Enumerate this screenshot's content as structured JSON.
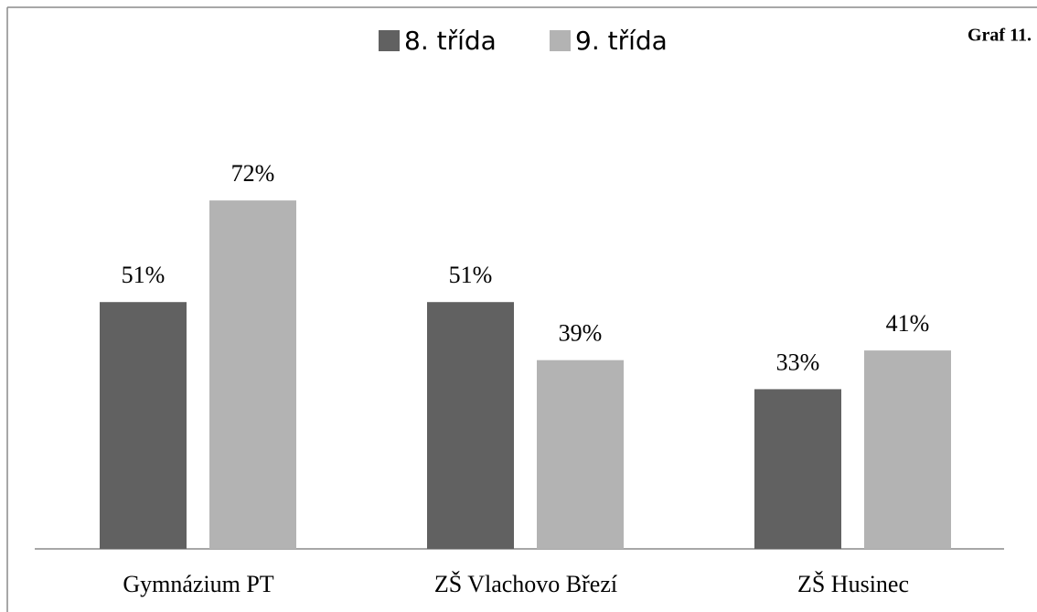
{
  "chart_data": {
    "type": "bar",
    "title": "Graf 11.",
    "categories": [
      "Gymnázium PT",
      "ZŠ Vlachovo Březí",
      "ZŠ Husinec"
    ],
    "series": [
      {
        "name": "8. třída",
        "color": "#616161",
        "values": [
          51,
          51,
          33
        ],
        "value_labels": [
          "51%",
          "51%",
          "33%"
        ]
      },
      {
        "name": "9. třída",
        "color": "#b3b3b3",
        "values": [
          72,
          39,
          41
        ],
        "value_labels": [
          "72%",
          "39%",
          "41%"
        ]
      }
    ],
    "ylim": [
      0,
      100
    ],
    "legend": "top"
  }
}
